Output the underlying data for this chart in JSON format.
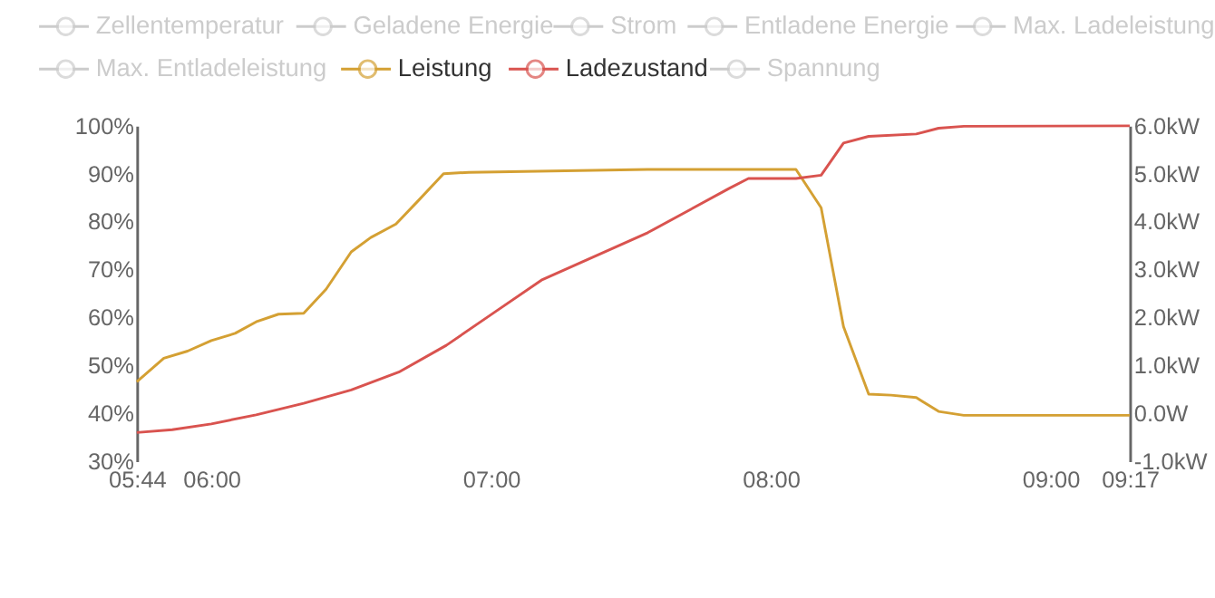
{
  "chart_data": {
    "type": "line",
    "xlim": [
      5.7333,
      9.2833
    ],
    "xticks": [
      {
        "value": 5.7333,
        "label": "05:44"
      },
      {
        "value": 6,
        "label": "06:00"
      },
      {
        "value": 7,
        "label": "07:00"
      },
      {
        "value": 8,
        "label": "08:00"
      },
      {
        "value": 9,
        "label": "09:00"
      },
      {
        "value": 9.2833,
        "label": "09:17"
      }
    ],
    "ylim": [
      30,
      100
    ],
    "yticks": [
      {
        "value": 30,
        "label": "30%"
      },
      {
        "value": 40,
        "label": "40%"
      },
      {
        "value": 50,
        "label": "50%"
      },
      {
        "value": 60,
        "label": "60%"
      },
      {
        "value": 70,
        "label": "70%"
      },
      {
        "value": 80,
        "label": "80%"
      },
      {
        "value": 90,
        "label": "90%"
      },
      {
        "value": 100,
        "label": "100%"
      }
    ],
    "y2lim": [
      -1,
      6
    ],
    "y2ticks": [
      {
        "value": -1,
        "label": "-1.0kW"
      },
      {
        "value": 0,
        "label": "0.0W"
      },
      {
        "value": 1,
        "label": "1.0kW"
      },
      {
        "value": 2,
        "label": "2.0kW"
      },
      {
        "value": 3,
        "label": "3.0kW"
      },
      {
        "value": 4,
        "label": "4.0kW"
      },
      {
        "value": 5,
        "label": "5.0kW"
      },
      {
        "value": 6,
        "label": "6.0kW"
      }
    ],
    "grid": false,
    "legend": "top",
    "marker": "none",
    "line_style": "solid",
    "series": [
      {
        "name": "Zellentemperatur",
        "color": "#cccccc"
      },
      {
        "name": "Geladene Energie",
        "color": "#cccccc"
      },
      {
        "name": "Strom",
        "color": "#cccccc"
      },
      {
        "name": "Entladene Energie",
        "color": "#cccccc"
      },
      {
        "name": "Max. Ladeleistung",
        "color": "#cccccc"
      },
      {
        "name": "Max. Entladeleistung",
        "color": "#cccccc"
      },
      {
        "name": "Leistung",
        "color": "#d4a033",
        "axis": "y2",
        "x": [
          5.7333,
          5.83,
          5.915,
          6.0,
          6.085,
          6.16,
          6.24,
          6.33,
          6.41,
          6.5,
          6.57,
          6.66,
          6.74,
          6.83,
          6.92,
          7.56,
          8.09,
          8.18,
          8.26,
          8.35,
          8.43,
          8.52,
          8.6,
          8.69,
          9.2833
        ],
        "values": [
          0.66,
          1.15,
          1.3,
          1.52,
          1.67,
          1.91,
          2.07,
          2.09,
          2.59,
          3.37,
          3.67,
          3.95,
          4.44,
          5.0,
          5.03,
          5.09,
          5.09,
          4.29,
          1.81,
          0.4,
          0.38,
          0.33,
          0.04,
          -0.04,
          -0.04
        ]
      },
      {
        "name": "Ladezustand",
        "color": "#d9534f",
        "x": [
          5.7333,
          5.86,
          6.0,
          6.16,
          6.33,
          6.5,
          6.67,
          6.84,
          7.01,
          7.18,
          7.56,
          7.85,
          7.92,
          8.09,
          8.18,
          8.26,
          8.35,
          8.52,
          8.6,
          8.69,
          9.2833
        ],
        "values": [
          36.0,
          36.6,
          37.8,
          39.7,
          42.1,
          44.9,
          48.6,
          54.2,
          61.0,
          67.8,
          77.7,
          86.9,
          89.0,
          89.0,
          89.7,
          96.4,
          97.8,
          98.3,
          99.5,
          99.9,
          100.0
        ]
      },
      {
        "name": "Spannung",
        "color": "#cccccc"
      }
    ]
  }
}
